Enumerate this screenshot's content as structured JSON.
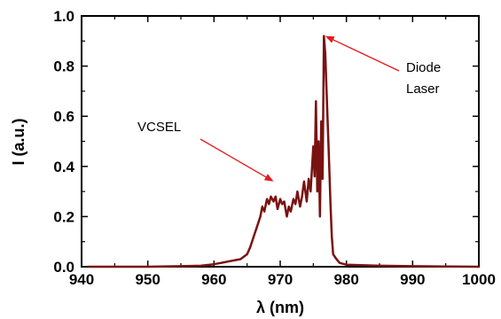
{
  "chart_data": {
    "type": "line",
    "xlabel": "λ (nm)",
    "ylabel": "I (a.u.)",
    "xlim": [
      940,
      1000
    ],
    "ylim": [
      0,
      1.0
    ],
    "x_ticks": [
      940,
      950,
      960,
      970,
      980,
      990,
      1000
    ],
    "y_ticks": [
      0.0,
      0.2,
      0.4,
      0.6,
      0.8,
      1.0
    ],
    "x_tick_labels": [
      "940",
      "950",
      "960",
      "970",
      "980",
      "990",
      "1000"
    ],
    "y_tick_labels": [
      "0.0",
      "0.2",
      "0.4",
      "0.6",
      "0.8",
      "1.0"
    ],
    "line_color": "#7a1212",
    "annotation_color": "#e41a1c",
    "grid": false,
    "series": [
      {
        "x": [
          941,
          945,
          950,
          955,
          958,
          960,
          961,
          962,
          963,
          964,
          965,
          965.5,
          966,
          966.5,
          967,
          967.3,
          967.6,
          968,
          968.3,
          968.6,
          969,
          969.3,
          969.6,
          970,
          970.3,
          970.6,
          971,
          971.3,
          971.6,
          972,
          972.3,
          972.6,
          973,
          973.3,
          973.6,
          974,
          974.3,
          974.6,
          975,
          975.2,
          975.4,
          975.6,
          975.8,
          976,
          976.2,
          976.4,
          976.6,
          976.8,
          977,
          977.2,
          977.4,
          977.6,
          977.8,
          978,
          978.5,
          979,
          980,
          985,
          990,
          995,
          1000
        ],
        "y": [
          0.0,
          0.0,
          0.0,
          0.002,
          0.004,
          0.01,
          0.015,
          0.02,
          0.025,
          0.03,
          0.05,
          0.08,
          0.12,
          0.16,
          0.2,
          0.24,
          0.22,
          0.27,
          0.25,
          0.28,
          0.26,
          0.28,
          0.23,
          0.27,
          0.25,
          0.26,
          0.2,
          0.24,
          0.22,
          0.27,
          0.25,
          0.3,
          0.24,
          0.28,
          0.34,
          0.26,
          0.35,
          0.3,
          0.48,
          0.36,
          0.66,
          0.3,
          0.5,
          0.2,
          0.58,
          0.35,
          0.92,
          0.85,
          0.7,
          0.55,
          0.4,
          0.25,
          0.12,
          0.05,
          0.03,
          0.015,
          0.008,
          0.004,
          0.002,
          0.001,
          0.0
        ]
      }
    ],
    "annotations": [
      {
        "text": "VCSEL",
        "target": [
          969.0,
          0.34
        ]
      },
      {
        "text": "Diode",
        "target": [
          976.8,
          0.92
        ]
      },
      {
        "text": "Laser",
        "target": [
          976.8,
          0.92
        ]
      }
    ]
  }
}
